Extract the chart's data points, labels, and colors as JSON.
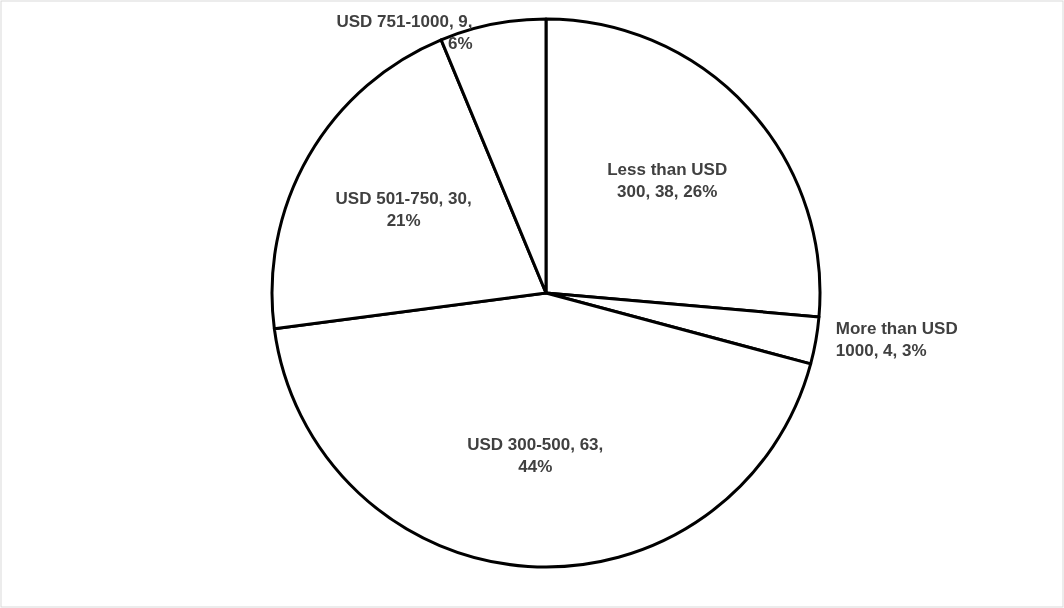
{
  "chart_data": {
    "type": "pie",
    "categories": [
      "Less than USD 300",
      "More than USD 1000",
      "USD 300-500",
      "USD 501-750",
      "USD 751-1000"
    ],
    "values": [
      38,
      4,
      63,
      30,
      9
    ],
    "value_labels": [
      "38, 26%",
      "4, 3%",
      "63, 44%",
      "30, 21%",
      "9, 6%"
    ],
    "colors": [
      "#ffffff",
      "#ffffff",
      "#ffffff",
      "#ffffff",
      "#ffffff"
    ]
  }
}
